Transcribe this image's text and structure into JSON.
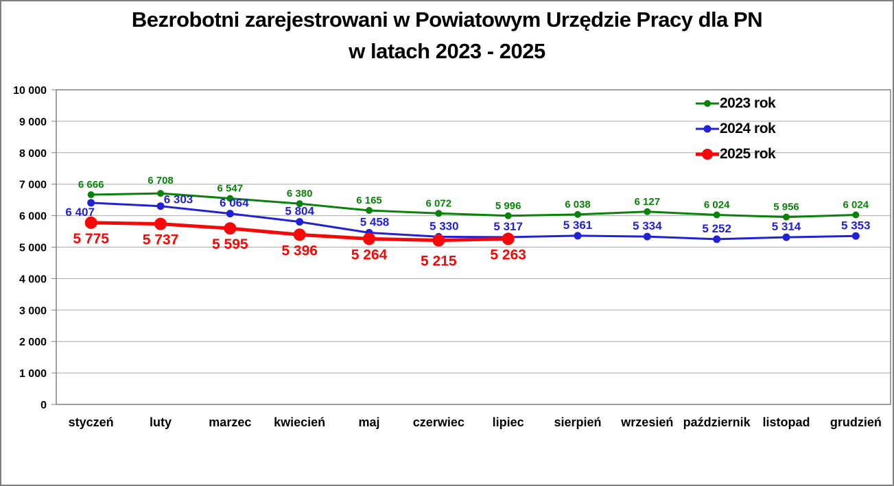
{
  "title": {
    "line1": "Bezrobotni zarejestrowani w Powiatowym Urzędzie Pracy dla PN",
    "line2": "w latach 2023 - 2025"
  },
  "legend": {
    "items": [
      {
        "label": "2023 rok",
        "color": "#0a820a",
        "marker_radius": 5,
        "line_width": 3
      },
      {
        "label": "2024 rok",
        "color": "#2121d6",
        "marker_radius": 5.5,
        "line_width": 3
      },
      {
        "label": "2025 rok",
        "color": "#f90606",
        "marker_radius": 8,
        "line_width": 5
      }
    ]
  },
  "chart_data": {
    "type": "line",
    "title": "Bezrobotni zarejestrowani w Powiatowym Urzędzie Pracy dla PN w latach 2023 - 2025",
    "categories": [
      "styczeń",
      "luty",
      "marzec",
      "kwiecień",
      "maj",
      "czerwiec",
      "lipiec",
      "sierpień",
      "wrzesień",
      "październik",
      "listopad",
      "grudzień"
    ],
    "series": [
      {
        "name": "2023 rok",
        "color": "#0a820a",
        "values": [
          6666,
          6708,
          6547,
          6380,
          6165,
          6072,
          5996,
          6038,
          6127,
          6024,
          5956,
          6024
        ],
        "labels": [
          "6 666",
          "6 708",
          "6 547",
          "6 380",
          "6 165",
          "6 072",
          "5 996",
          "6 038",
          "6 127",
          "6 024",
          "5 956",
          "6 024"
        ],
        "marker_radius": 5,
        "line_width": 3,
        "label_position": "above",
        "label_font_size": 15,
        "label_dx": {},
        "label_dy": {
          "1": -4
        }
      },
      {
        "name": "2024 rok",
        "color": "#2121d6",
        "values": [
          6407,
          6303,
          6064,
          5804,
          5458,
          5330,
          5317,
          5361,
          5334,
          5252,
          5314,
          5353
        ],
        "labels": [
          "6 407",
          "6 303",
          "6 064",
          "5 804",
          "5 458",
          "5 330",
          "5 317",
          "5 361",
          "5 334",
          "5 252",
          "5 314",
          "5 353"
        ],
        "marker_radius": 5.5,
        "line_width": 3,
        "label_position": "above",
        "label_font_size": 17,
        "label_dx": {
          "0": -16,
          "1": 26,
          "2": 6,
          "4": 8,
          "5": 8
        },
        "label_dy": {
          "0": 29,
          "1": 6
        }
      },
      {
        "name": "2025 rok",
        "color": "#f90606",
        "values": [
          5775,
          5737,
          5595,
          5396,
          5264,
          5215,
          5263
        ],
        "labels": [
          "5 775",
          "5 737",
          "5 595",
          "5 396",
          "5 264",
          "5 215",
          "5 263"
        ],
        "marker_radius": 9,
        "line_width": 5,
        "label_position": "below",
        "label_font_size": 21,
        "label_dx": {},
        "label_dy": {
          "5": 7
        }
      }
    ],
    "ylim": [
      0,
      10000
    ],
    "ytick_step": 1000,
    "ytick_labels": [
      "0",
      "1 000",
      "2 000",
      "3 000",
      "4 000",
      "5 000",
      "6 000",
      "7 000",
      "8 000",
      "9 000",
      "10 000"
    ],
    "grid": true,
    "legend_position": "top-right",
    "axis_color": "#808080",
    "grid_color": "#a8a8a8",
    "text_color": "#000000",
    "xlabel": "",
    "ylabel": ""
  }
}
